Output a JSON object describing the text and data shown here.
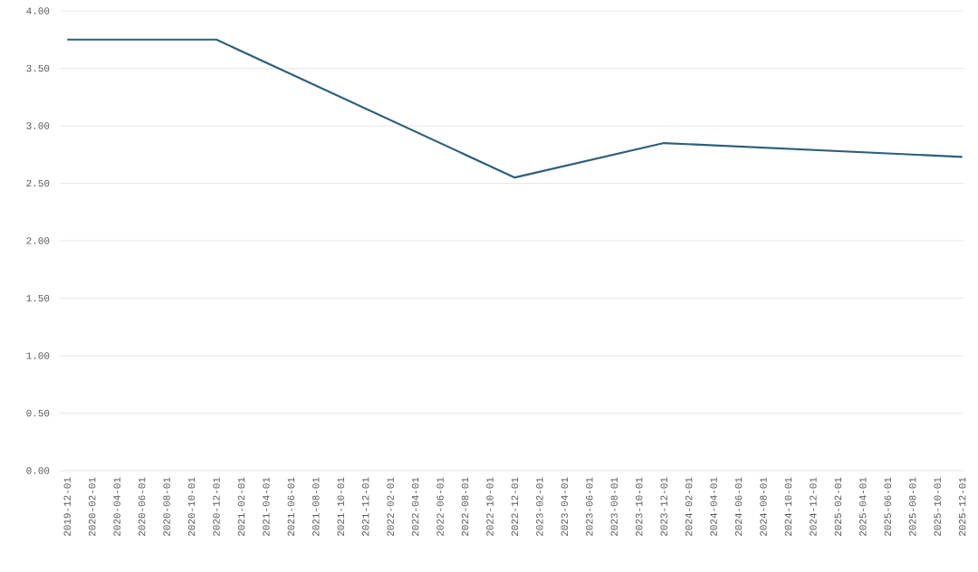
{
  "chart_data": {
    "type": "line",
    "categories": [
      "2019-12-01",
      "2020-02-01",
      "2020-04-01",
      "2020-06-01",
      "2020-08-01",
      "2020-10-01",
      "2020-12-01",
      "2021-02-01",
      "2021-04-01",
      "2021-06-01",
      "2021-08-01",
      "2021-10-01",
      "2021-12-01",
      "2022-02-01",
      "2022-04-01",
      "2022-06-01",
      "2022-08-01",
      "2022-10-01",
      "2022-12-01",
      "2023-02-01",
      "2023-04-01",
      "2023-06-01",
      "2023-08-01",
      "2023-10-01",
      "2023-12-01",
      "2024-02-01",
      "2024-04-01",
      "2024-06-01",
      "2024-08-01",
      "2024-10-01",
      "2024-12-01",
      "2025-02-01",
      "2025-04-01",
      "2025-06-01",
      "2025-08-01",
      "2025-10-01",
      "2025-12-01"
    ],
    "series": [
      {
        "color": "#2e5f7a",
        "values": [
          3.75,
          null,
          null,
          null,
          null,
          null,
          3.75,
          null,
          null,
          null,
          null,
          null,
          null,
          null,
          null,
          null,
          null,
          null,
          2.55,
          null,
          null,
          null,
          null,
          null,
          2.85,
          null,
          null,
          null,
          null,
          null,
          null,
          null,
          null,
          null,
          null,
          null,
          2.73
        ]
      }
    ],
    "ylim": [
      0,
      4
    ],
    "yticks": [
      {
        "value": 0,
        "label": "0.00"
      },
      {
        "value": 0.5,
        "label": "0.50"
      },
      {
        "value": 1,
        "label": "1.00"
      },
      {
        "value": 1.5,
        "label": "1.50"
      },
      {
        "value": 2,
        "label": "2.00"
      },
      {
        "value": 2.5,
        "label": "2.50"
      },
      {
        "value": 3,
        "label": "3.00"
      },
      {
        "value": 3.5,
        "label": "3.50"
      },
      {
        "value": 4,
        "label": "4.00"
      }
    ],
    "grid": "y",
    "marker": "none",
    "line_style": "solid"
  }
}
